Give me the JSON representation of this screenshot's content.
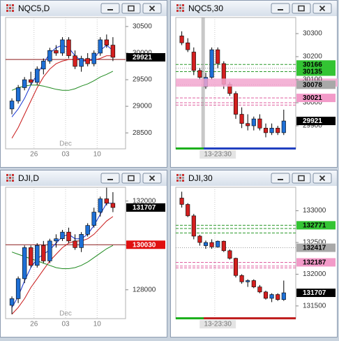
{
  "windows": [
    {
      "title": "NQC5,D",
      "chart": {
        "type": "candlestick",
        "ylim": [
          28200,
          30670
        ],
        "yticks": [
          28500,
          29000,
          29500,
          30000,
          30500
        ],
        "categories": [
          null,
          null,
          null,
          null,
          "26",
          null,
          null,
          null,
          null,
          "03",
          null,
          null,
          null,
          null,
          "10",
          null,
          null
        ],
        "month_labels": [
          null,
          null,
          null,
          null,
          null,
          null,
          null,
          null,
          null,
          "Dec",
          null,
          null,
          null,
          null,
          null,
          null,
          null
        ],
        "up_color": "#1e6fd6",
        "down_color": "#d41f1f",
        "open": [
          28950,
          29100,
          29350,
          29500,
          29450,
          29700,
          29850,
          30050,
          30000,
          30250,
          29950,
          29750,
          29900,
          29800,
          30000,
          30250,
          30150
        ],
        "high": [
          29150,
          29400,
          29550,
          29650,
          29750,
          29900,
          30100,
          30150,
          30300,
          30300,
          30050,
          29950,
          30000,
          30050,
          30300,
          30350,
          30300
        ],
        "low": [
          28850,
          29050,
          29300,
          29400,
          29400,
          29600,
          29800,
          29950,
          29950,
          29900,
          29700,
          29650,
          29750,
          29750,
          29950,
          30100,
          29850
        ],
        "close": [
          29100,
          29350,
          29500,
          29450,
          29700,
          29850,
          30050,
          30000,
          30250,
          29950,
          29750,
          29900,
          29800,
          30000,
          30250,
          30150,
          29921
        ],
        "lines": [
          {
            "color": "#1030d0",
            "values": [
              28800,
              28950,
              29150,
              29400,
              29600,
              29800,
              30000,
              30100,
              30150,
              30100,
              29950,
              29850,
              29850,
              29900,
              30050,
              30150,
              30050
            ]
          },
          {
            "color": "#c81818",
            "values": [
              28400,
              28600,
              28850,
              29100,
              29350,
              29550,
              29700,
              29800,
              29850,
              29880,
              29880,
              29870,
              29860,
              29870,
              29900,
              29950,
              29950
            ]
          },
          {
            "color": "#1f8a1f",
            "values": [
              29300,
              29350,
              29380,
              29400,
              29400,
              29380,
              29350,
              29320,
              29300,
              29300,
              29330,
              29380,
              29420,
              29480,
              29550,
              29600,
              29660
            ]
          }
        ],
        "hlines": [
          {
            "value": 29880,
            "color": "#8b1a1a",
            "style": "solid"
          }
        ],
        "tags": [
          {
            "value": 29921,
            "color": "#000000",
            "text_color": "#ffffff"
          }
        ]
      }
    },
    {
      "title": "NQC5,30",
      "chart": {
        "type": "candlestick",
        "ylim": [
          29800,
          30370
        ],
        "yticks": [
          29900,
          30000,
          30100,
          30200,
          30300
        ],
        "categories": [
          null,
          null,
          null,
          null,
          null,
          null,
          "13-23:30",
          null,
          null,
          null,
          null,
          null,
          null,
          null,
          null,
          null,
          null,
          null
        ],
        "month_labels": [
          null,
          null,
          null,
          null,
          null,
          null,
          null,
          null,
          null,
          null,
          null,
          null,
          null,
          null,
          null,
          null,
          null,
          null
        ],
        "up_color": "#1e6fd6",
        "down_color": "#d41f1f",
        "open": [
          30290,
          30260,
          30220,
          30140,
          30070,
          30110,
          30230,
          30170,
          30080,
          30040,
          29950,
          29910,
          29900,
          29930,
          29890,
          29870,
          29890,
          29870
        ],
        "high": [
          30310,
          30280,
          30240,
          30150,
          30130,
          30240,
          30240,
          30180,
          30090,
          30050,
          29980,
          29950,
          29940,
          29950,
          29910,
          29910,
          29900,
          29970
        ],
        "low": [
          30250,
          30220,
          30120,
          30100,
          30060,
          30100,
          30150,
          30060,
          30030,
          29930,
          29890,
          29880,
          29880,
          29880,
          29850,
          29860,
          29860,
          29860
        ],
        "close": [
          30260,
          30230,
          30140,
          30110,
          30110,
          30230,
          30170,
          30080,
          30040,
          29950,
          29910,
          29900,
          29930,
          29890,
          29870,
          29890,
          29870,
          29921
        ],
        "lines": [],
        "band": {
          "from": 30070,
          "to": 30105,
          "color": "#f2a6cf"
        },
        "hlines": [
          {
            "value": 30166,
            "color": "#2a9a2a",
            "style": "dashed"
          },
          {
            "value": 30150,
            "color": "#999999",
            "style": "dotted"
          },
          {
            "value": 30135,
            "color": "#2a9a2a",
            "style": "dashed"
          },
          {
            "value": 30078,
            "color": "#999999",
            "style": "dotted"
          },
          {
            "value": 30021,
            "color": "#e060a0",
            "style": "dashed"
          },
          {
            "value": 30000,
            "color": "#e060a0",
            "style": "dashed"
          },
          {
            "value": 29990,
            "color": "#e060a0",
            "style": "dashed"
          }
        ],
        "tags": [
          {
            "value": 30166,
            "color": "#33c433",
            "text_color": "#000000"
          },
          {
            "value": 30135,
            "color": "#33c433",
            "text_color": "#000000"
          },
          {
            "value": 30078,
            "color": "#a8a8a8",
            "text_color": "#000000"
          },
          {
            "value": 30021,
            "color": "#f29ac8",
            "text_color": "#000000"
          },
          {
            "value": 29921,
            "color": "#000000",
            "text_color": "#ffffff"
          }
        ]
      }
    },
    {
      "title": "DJI,D",
      "chart": {
        "type": "candlestick",
        "ylim": [
          126700,
          132620
        ],
        "yticks": [
          128000,
          130000,
          132000
        ],
        "categories": [
          null,
          null,
          null,
          null,
          "26",
          null,
          null,
          null,
          null,
          "03",
          null,
          null,
          null,
          null,
          "10",
          null,
          null
        ],
        "month_labels": [
          null,
          null,
          null,
          null,
          null,
          null,
          null,
          null,
          null,
          "Dec",
          null,
          null,
          null,
          null,
          null,
          null,
          null
        ],
        "up_color": "#1e6fd6",
        "down_color": "#d41f1f",
        "open": [
          127300,
          127600,
          128500,
          129900,
          129100,
          130000,
          129300,
          130200,
          130300,
          130600,
          130200,
          129900,
          130500,
          130900,
          131500,
          132100,
          131900
        ],
        "high": [
          127700,
          128600,
          130000,
          130000,
          130100,
          130200,
          130300,
          130500,
          130700,
          130800,
          130500,
          130600,
          131000,
          131700,
          132200,
          132600,
          132400
        ],
        "low": [
          126900,
          127400,
          128300,
          129000,
          129000,
          129200,
          129200,
          129900,
          130200,
          130100,
          129800,
          129700,
          130400,
          130800,
          131300,
          131800,
          131500
        ],
        "close": [
          127600,
          128500,
          129900,
          129100,
          130000,
          129300,
          130200,
          130300,
          130600,
          130200,
          129900,
          130500,
          130900,
          131500,
          132100,
          131900,
          131707
        ],
        "lines": [
          {
            "color": "#1030d0",
            "values": [
              127200,
              127700,
              128400,
              129000,
              129400,
              129600,
              129800,
              130100,
              130400,
              130500,
              130300,
              130300,
              130500,
              130900,
              131400,
              131900,
              131900
            ]
          },
          {
            "color": "#c81818",
            "values": [
              126900,
              127200,
              127600,
              128100,
              128500,
              128900,
              129300,
              129600,
              129900,
              130100,
              130200,
              130200,
              130300,
              130500,
              130800,
              131100,
              131300
            ]
          },
          {
            "color": "#1f8a1f",
            "values": [
              129700,
              129600,
              129500,
              129400,
              129300,
              129200,
              129100,
              129000,
              128950,
              128950,
              129000,
              129100,
              129250,
              129450,
              129650,
              129850,
              130000
            ]
          }
        ],
        "hlines": [
          {
            "value": 130030,
            "color": "#8b1a1a",
            "style": "solid"
          }
        ],
        "tags": [
          {
            "value": 131707,
            "color": "#000000",
            "text_color": "#ffffff"
          },
          {
            "value": 130030,
            "color": "#e01010",
            "text_color": "#ffffff"
          }
        ]
      }
    },
    {
      "title": "DJI,30",
      "chart": {
        "type": "candlestick",
        "ylim": [
          131300,
          133370
        ],
        "yticks": [
          131500,
          132000,
          132500,
          133000
        ],
        "categories": [
          null,
          null,
          null,
          null,
          null,
          null,
          "13-23:30",
          null,
          null,
          null,
          null,
          null,
          null,
          null,
          null,
          null,
          null,
          null
        ],
        "month_labels": [
          null,
          null,
          null,
          null,
          null,
          null,
          null,
          null,
          null,
          null,
          null,
          null,
          null,
          null,
          null,
          null,
          null,
          null
        ],
        "up_color": "#1e6fd6",
        "down_color": "#d41f1f",
        "open": [
          133200,
          133100,
          132920,
          132600,
          132450,
          132500,
          132430,
          132520,
          132370,
          132250,
          131980,
          131880,
          131900,
          131800,
          131720,
          131620,
          131680,
          131600
        ],
        "high": [
          133300,
          133120,
          132950,
          132620,
          132530,
          132550,
          132530,
          132530,
          132390,
          132260,
          132000,
          131920,
          131920,
          131830,
          131740,
          131700,
          131700,
          131900
        ],
        "low": [
          133050,
          132900,
          132550,
          132450,
          132400,
          132400,
          132420,
          132350,
          132230,
          131950,
          131850,
          131800,
          131780,
          131700,
          131600,
          131560,
          131580,
          131580
        ],
        "close": [
          133100,
          132920,
          132600,
          132500,
          132500,
          132430,
          132520,
          132370,
          132250,
          131980,
          131880,
          131900,
          131800,
          131720,
          131620,
          131680,
          131600,
          131707
        ],
        "lines": [],
        "hlines": [
          {
            "value": 132771,
            "color": "#2a9a2a",
            "style": "dashed"
          },
          {
            "value": 132720,
            "color": "#2a9a2a",
            "style": "dashed"
          },
          {
            "value": 132650,
            "color": "#2a9a2a",
            "style": "dashed"
          },
          {
            "value": 132417,
            "color": "#999999",
            "style": "dotted"
          },
          {
            "value": 132187,
            "color": "#e060a0",
            "style": "dashed"
          },
          {
            "value": 132128,
            "color": "#e060a0",
            "style": "dashed"
          },
          {
            "value": 132100,
            "color": "#e060a0",
            "style": "dashed"
          }
        ],
        "tags": [
          {
            "value": 132771,
            "color": "#33c433",
            "text_color": "#000000"
          },
          {
            "value": 132417,
            "color": "#a8a8a8",
            "text_color": "#000000"
          },
          {
            "value": 132187,
            "color": "#f29ac8",
            "text_color": "#000000"
          },
          {
            "value": 131707,
            "color": "#000000",
            "text_color": "#ffffff"
          }
        ]
      }
    }
  ]
}
